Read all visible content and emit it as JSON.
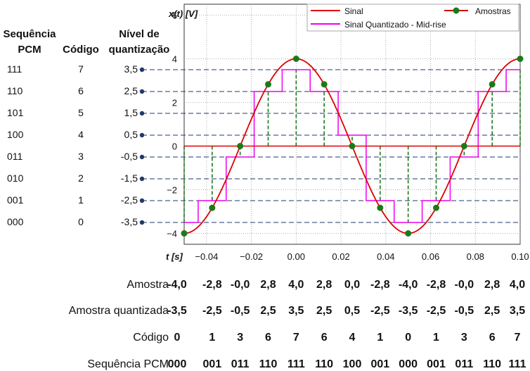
{
  "chart_data": {
    "type": "line",
    "xlabel": "t [s]",
    "ylabel": "x(t) [V]",
    "xlim": [
      -0.05,
      0.1
    ],
    "ylim": [
      -4.5,
      6.5
    ],
    "xticks": [
      "−0.04",
      "−0.02",
      "0.00",
      "0.02",
      "0.04",
      "0.06",
      "0.08",
      "0.10"
    ],
    "xtick_values": [
      -0.04,
      -0.02,
      0.0,
      0.02,
      0.04,
      0.06,
      0.08,
      0.1
    ],
    "yticks": [
      "−4",
      "−2",
      "0",
      "2",
      "4",
      "6"
    ],
    "ytick_values": [
      -4,
      -2,
      0,
      2,
      4,
      6
    ],
    "grid": true,
    "legend_position": "top-right",
    "series": [
      {
        "name": "Sinal",
        "color": "#e00000",
        "amplitude": 4,
        "period": 0.1
      },
      {
        "name": "Sinal Quantizado - Mid-rise",
        "color": "#ee00ee",
        "x": [
          -0.05,
          -0.0375,
          -0.025,
          -0.0125,
          0.0,
          0.0125,
          0.025,
          0.0375,
          0.05,
          0.0625,
          0.075,
          0.0875,
          0.1
        ],
        "y": [
          -3.5,
          -2.5,
          -0.5,
          2.5,
          3.5,
          2.5,
          0.5,
          -2.5,
          -3.5,
          -2.5,
          -0.5,
          2.5,
          3.5
        ]
      },
      {
        "name": "Amostras",
        "color": "#1a7a1a",
        "x": [
          -0.05,
          -0.0375,
          -0.025,
          -0.0125,
          0.0,
          0.0125,
          0.025,
          0.0375,
          0.05,
          0.0625,
          0.075,
          0.0875,
          0.1
        ],
        "y": [
          -4.0,
          -2.83,
          0.0,
          2.83,
          4.0,
          2.83,
          0.0,
          -2.83,
          -4.0,
          -2.83,
          0.0,
          2.83,
          4.0
        ]
      }
    ],
    "quant_levels": [
      3.5,
      2.5,
      1.5,
      0.5,
      -0.5,
      -1.5,
      -2.5,
      -3.5
    ]
  },
  "left_table": {
    "header_pcm": [
      "Sequência",
      "PCM"
    ],
    "header_code": "Código",
    "header_level": [
      "Nível de",
      "quantização"
    ],
    "rows": [
      {
        "pcm": "111",
        "code": "7",
        "level": "3,5"
      },
      {
        "pcm": "110",
        "code": "6",
        "level": "2,5"
      },
      {
        "pcm": "101",
        "code": "5",
        "level": "1,5"
      },
      {
        "pcm": "100",
        "code": "4",
        "level": "0,5"
      },
      {
        "pcm": "011",
        "code": "3",
        "level": "-0,5"
      },
      {
        "pcm": "010",
        "code": "2",
        "level": "-1,5"
      },
      {
        "pcm": "001",
        "code": "1",
        "level": "-2,5"
      },
      {
        "pcm": "000",
        "code": "0",
        "level": "-3,5"
      }
    ]
  },
  "bottom_table": {
    "labels": [
      "Amostra",
      "Amostra quantizada",
      "Código",
      "Sequência PCM"
    ],
    "amostra": [
      "-4,0",
      "-2,8",
      "-0,0",
      "2,8",
      "4,0",
      "2,8",
      "0,0",
      "-2,8",
      "-4,0",
      "-2,8",
      "-0,0",
      "2,8",
      "4,0"
    ],
    "quantizada": [
      "-3,5",
      "-2,5",
      "-0,5",
      "2,5",
      "3,5",
      "2,5",
      "0,5",
      "-2,5",
      "-3,5",
      "-2,5",
      "-0,5",
      "2,5",
      "3,5"
    ],
    "codigo": [
      "0",
      "1",
      "3",
      "6",
      "7",
      "6",
      "4",
      "1",
      "0",
      "1",
      "3",
      "6",
      "7"
    ],
    "pcm": [
      "000",
      "001",
      "011",
      "110",
      "111",
      "110",
      "100",
      "001",
      "000",
      "001",
      "011",
      "110",
      "111"
    ]
  }
}
